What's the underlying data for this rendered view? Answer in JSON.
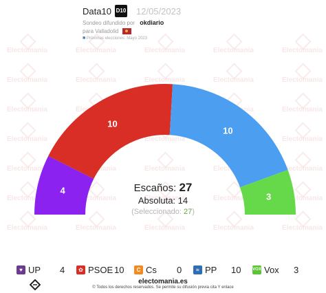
{
  "header": {
    "brand": "Data10",
    "brand_logo": "D10",
    "date": "12/05/2023",
    "sondeo_prefix": "Sondeo difundido por",
    "client": "okdiario",
    "location": "para Valladolid",
    "next_elections": "Próximas elecciones: Mayo 2023"
  },
  "watermark": "Electomania",
  "center": {
    "seats_label": "Escaños:",
    "seats_total": "27",
    "absolute_label": "Absoluta:",
    "absolute_value": "14",
    "selected_open": "(Seleccionado:",
    "selected_value": "27",
    "selected_close": ")"
  },
  "chart_data": {
    "type": "pie",
    "subtype": "hemicycle",
    "categories": [
      "UP",
      "PSOE",
      "Cs",
      "PP",
      "Vox"
    ],
    "values": [
      4,
      10,
      0,
      10,
      3
    ],
    "colors": [
      "#8b22f0",
      "#d82e26",
      "#f28a20",
      "#4c9ff0",
      "#66d94a"
    ],
    "total_seats": 27,
    "majority": 14
  },
  "legend": [
    {
      "name": "UP",
      "value": "4",
      "color": "#6c3a8e",
      "icon": "up-heart-icon"
    },
    {
      "name": "PSOE",
      "value": "10",
      "color": "#d82e26",
      "icon": "psoe-rose-icon"
    },
    {
      "name": "Cs",
      "value": "0",
      "color": "#f28a20",
      "icon": "cs-logo-icon"
    },
    {
      "name": "PP",
      "value": "10",
      "color": "#2f6db5",
      "icon": "pp-seagull-icon"
    },
    {
      "name": "Vox",
      "value": "3",
      "color": "#5bc535",
      "icon": "vox-logo-icon"
    }
  ],
  "footer": {
    "site": "electomania.es",
    "copyright": "© Todos los derechos reservados. Se permite su difusión previa cita Y enlace"
  }
}
